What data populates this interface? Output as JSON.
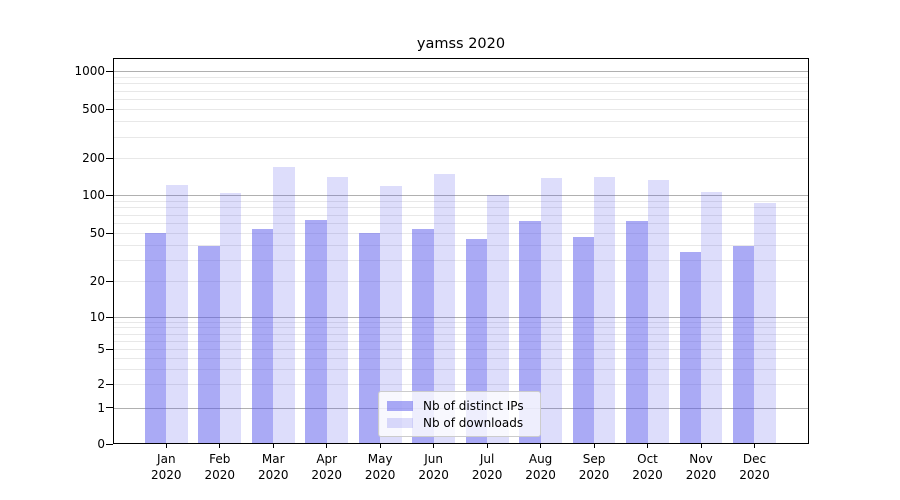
{
  "chart_data": {
    "type": "bar",
    "title": "yamss 2020",
    "months": [
      "Jan",
      "Feb",
      "Mar",
      "Apr",
      "May",
      "Jun",
      "Jul",
      "Aug",
      "Sep",
      "Oct",
      "Nov",
      "Dec"
    ],
    "year": "2020",
    "series": [
      {
        "name": "Nb of distinct IPs",
        "color": "rgba(85,85,235,0.5)",
        "values": [
          50,
          39,
          54,
          63,
          50,
          54,
          45,
          62,
          46,
          62,
          35,
          39
        ]
      },
      {
        "name": "Nb of downloads",
        "color": "rgba(85,85,235,0.2)",
        "values": [
          120,
          104,
          170,
          140,
          118,
          148,
          100,
          137,
          141,
          132,
          106,
          87
        ]
      }
    ],
    "y_scale": "symlog",
    "y_ticks": [
      0,
      1,
      2,
      5,
      10,
      20,
      50,
      100,
      200,
      500,
      1000
    ],
    "y_minor_gridlines": [
      2,
      3,
      4,
      5,
      6,
      7,
      8,
      9,
      20,
      30,
      40,
      50,
      60,
      70,
      80,
      90,
      200,
      300,
      400,
      500,
      600,
      700,
      800,
      900
    ],
    "y_major_gridlines": [
      1,
      10,
      100,
      1000
    ],
    "ylim": [
      0,
      1270
    ],
    "grid": true,
    "legend_position": "lower center",
    "colors": {
      "bar_base": "#5555eb",
      "major_grid": "#b0b0b0",
      "minor_grid": "#e8e8e8",
      "axis": "#000000",
      "legend_border": "#cccccc"
    }
  }
}
